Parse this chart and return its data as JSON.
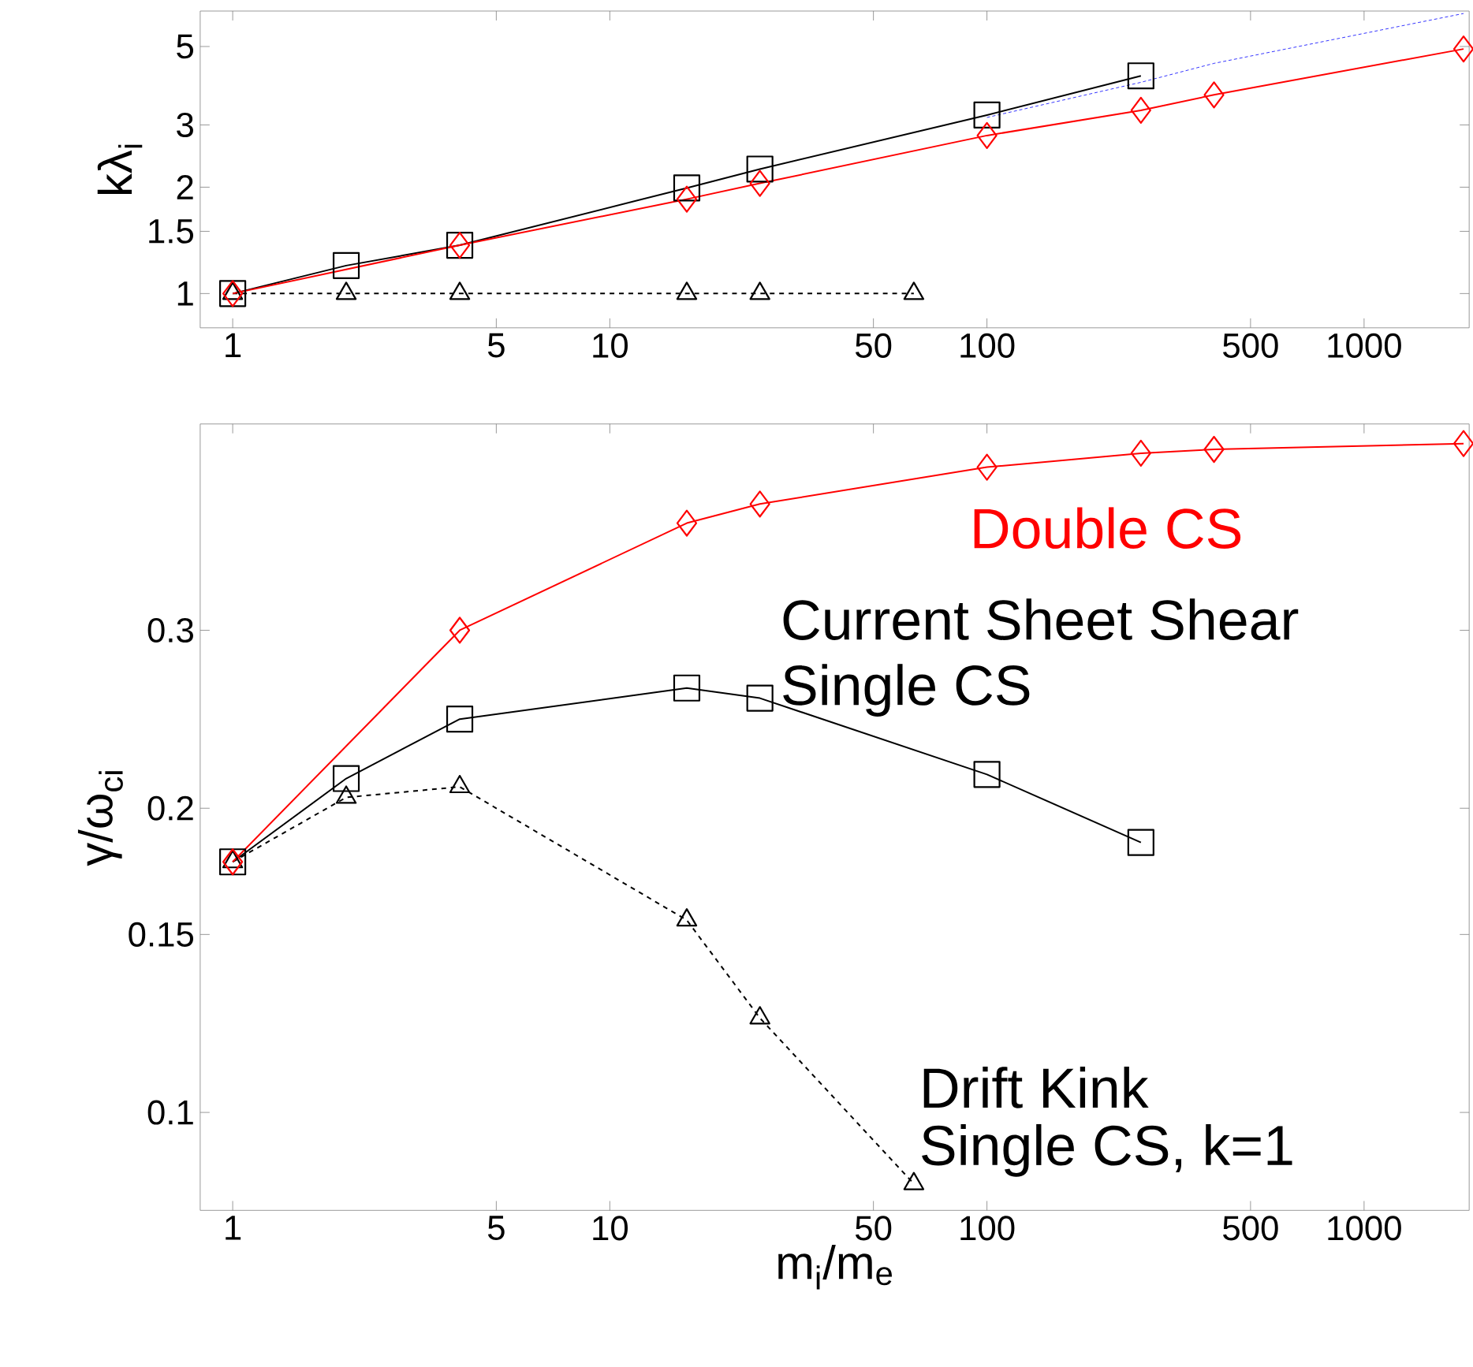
{
  "chart_data": [
    {
      "type": "line",
      "ylabel": "kλ$_{i}$",
      "log": "xy",
      "xlim": [
        0.82,
        1900
      ],
      "ylim": [
        0.8,
        6.3
      ],
      "xticks": [
        1,
        5,
        10,
        50,
        100,
        500,
        1000
      ],
      "yticks": [
        1,
        1.5,
        2,
        3,
        5
      ],
      "series": [
        {
          "color": "#000000",
          "marker": "triangle",
          "line_style": "dashed",
          "x": [
            1,
            2,
            4,
            16,
            25,
            64
          ],
          "values": [
            1,
            1,
            1,
            1,
            1,
            1
          ]
        },
        {
          "color": "#000000",
          "marker": "square",
          "line_style": "solid",
          "x": [
            1,
            2,
            4,
            16,
            25,
            100,
            256
          ],
          "values": [
            1,
            1.2,
            1.37,
            1.99,
            2.25,
            3.2,
            4.13
          ]
        },
        {
          "color": "#ff0000",
          "marker": "diamond",
          "line_style": "solid",
          "x": [
            1,
            4,
            16,
            25,
            100,
            256,
            400,
            1836
          ],
          "values": [
            1,
            1.37,
            1.85,
            2.05,
            2.8,
            3.3,
            3.65,
            4.92
          ]
        },
        {
          "color": "#0000ff",
          "marker": "none",
          "line_style": "dashed",
          "x": [
            100,
            256,
            400,
            1836
          ],
          "values": [
            3.15,
            3.96,
            4.48,
            6.2
          ]
        }
      ]
    },
    {
      "type": "line",
      "xlabel": "m$_{i}$/m$_{e}$",
      "ylabel": "γ/ω$_{ci}$",
      "log": "xy",
      "xlim": [
        0.82,
        1900
      ],
      "ylim": [
        0.08,
        0.48
      ],
      "xticks": [
        1,
        5,
        10,
        50,
        100,
        500,
        1000
      ],
      "yticks": [
        0.1,
        0.15,
        0.2,
        0.3
      ],
      "annotations": [
        "Double CS",
        "Current Sheet Shear",
        "Single CS",
        "Drift Kink",
        "Single CS, k=1"
      ],
      "series": [
        {
          "color": "#000000",
          "marker": "square",
          "line_style": "solid",
          "x": [
            1,
            2,
            4,
            16,
            25,
            100,
            256
          ],
          "values": [
            0.177,
            0.214,
            0.245,
            0.263,
            0.257,
            0.216,
            0.185
          ]
        },
        {
          "color": "#000000",
          "marker": "triangle",
          "line_style": "dashed",
          "x": [
            1,
            2,
            4,
            16,
            25,
            64
          ],
          "values": [
            0.177,
            0.205,
            0.21,
            0.155,
            0.124,
            0.085
          ]
        },
        {
          "color": "#ff0000",
          "marker": "diamond",
          "line_style": "solid",
          "x": [
            1,
            4,
            16,
            25,
            100,
            256,
            400,
            1836
          ],
          "values": [
            0.177,
            0.3,
            0.383,
            0.4,
            0.435,
            0.449,
            0.453,
            0.459
          ]
        }
      ]
    }
  ]
}
